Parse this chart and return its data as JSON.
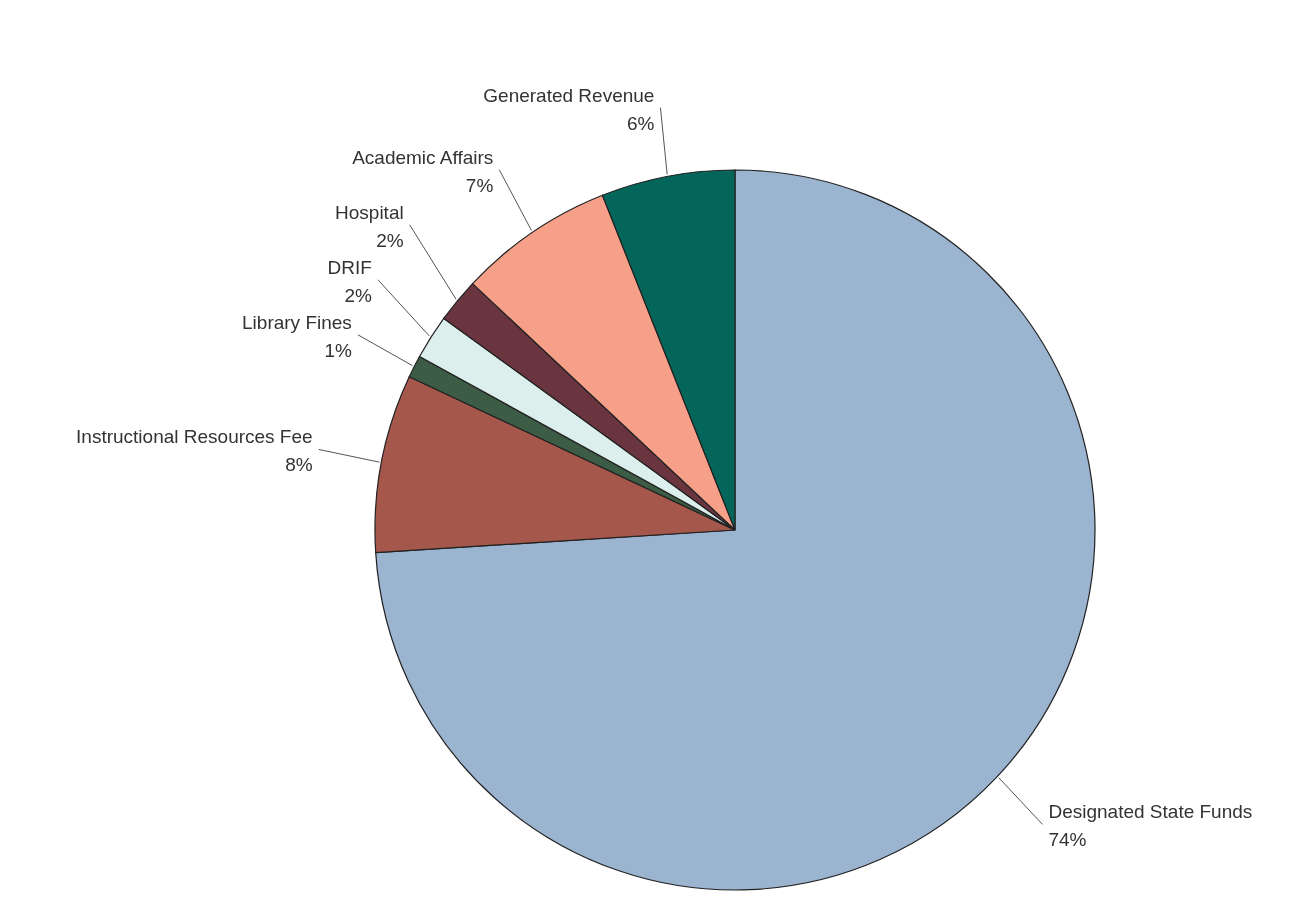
{
  "chart_data": {
    "type": "pie",
    "categories": [
      "Designated State Funds",
      "Instructional Resources Fee",
      "Library Fines",
      "DRIF",
      "Hospital",
      "Academic Affairs",
      "Generated Revenue"
    ],
    "values": [
      74,
      8,
      1,
      2,
      2,
      7,
      6
    ],
    "value_labels": [
      "74%",
      "8%",
      "1%",
      "2%",
      "2%",
      "7%",
      "6%"
    ],
    "colors": [
      "#9bb4d0",
      "#a5574b",
      "#3d5c46",
      "#dcefec",
      "#6b3540",
      "#f6a089",
      "#04665a"
    ]
  }
}
